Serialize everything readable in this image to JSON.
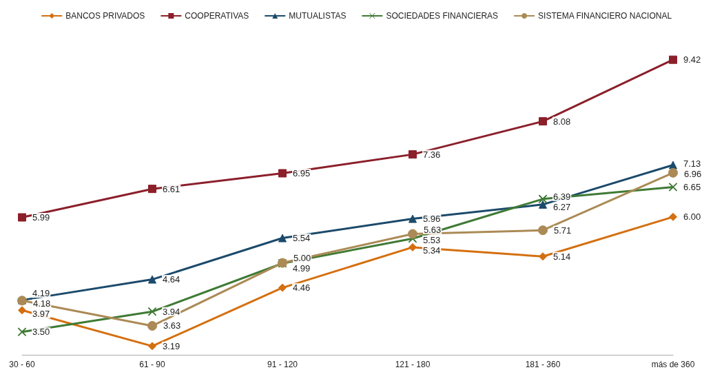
{
  "chart_data": {
    "type": "line",
    "categories": [
      "30 - 60",
      "61 - 90",
      "91 - 120",
      "121 - 180",
      "181 - 360",
      "más de 360"
    ],
    "legend": "top",
    "grid": false,
    "series": [
      {
        "name": "BANCOS PRIVADOS",
        "color": "#d46f0f",
        "marker": "diamond",
        "values": [
          3.97,
          3.19,
          4.46,
          5.34,
          5.14,
          6.0
        ],
        "value_labels": [
          "3.97",
          "3.19",
          "4.46",
          "5.34",
          "5.14",
          "6.00"
        ]
      },
      {
        "name": "COOPERATIVAS",
        "color": "#8b1f2a",
        "marker": "square",
        "values": [
          5.99,
          6.61,
          6.95,
          7.36,
          8.08,
          9.42
        ],
        "value_labels": [
          "5.99",
          "6.61",
          "6.95",
          "7.36",
          "8.08",
          "9.42"
        ]
      },
      {
        "name": "MUTUALISTAS",
        "color": "#1b4a6b",
        "marker": "triangle",
        "values": [
          4.19,
          4.64,
          5.54,
          5.96,
          6.27,
          7.13
        ],
        "value_labels": [
          "4.19",
          "4.64",
          "5.54",
          "5.96",
          "6.27",
          "7.13"
        ]
      },
      {
        "name": "SOCIEDADES FINANCIERAS",
        "color": "#3f7a35",
        "marker": "cross",
        "values": [
          3.5,
          3.94,
          4.99,
          5.53,
          6.39,
          6.65
        ],
        "value_labels": [
          "3.50",
          "3.94",
          "4.99",
          "5.53",
          "6.39",
          "6.65"
        ]
      },
      {
        "name": "SISTEMA FINANCIERO NACIONAL",
        "color": "#ab8a55",
        "marker": "circle",
        "values": [
          4.18,
          3.63,
          5.0,
          5.63,
          5.71,
          6.96
        ],
        "value_labels": [
          "4.18",
          "3.63",
          "5.00",
          "5.63",
          "5.71",
          "6.96"
        ]
      }
    ]
  }
}
